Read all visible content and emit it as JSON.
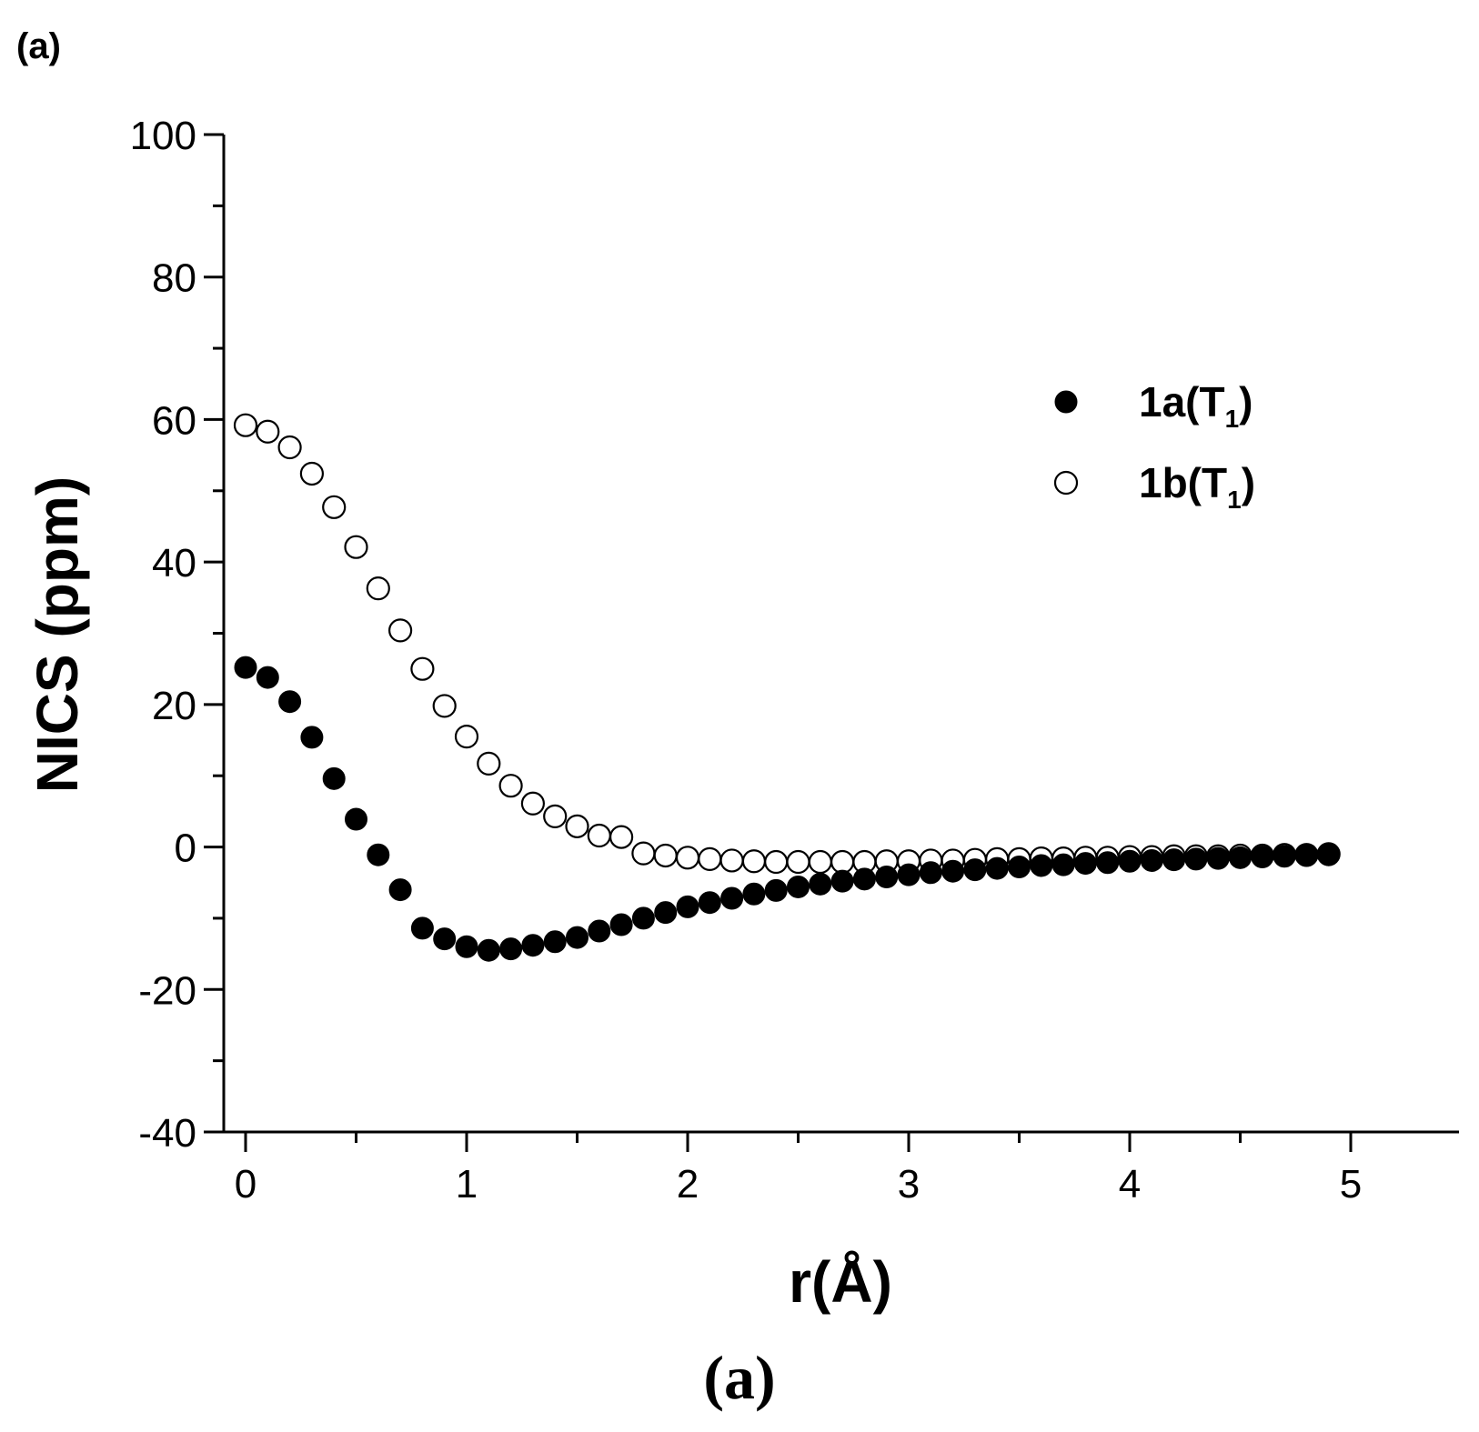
{
  "chart_data": {
    "type": "scatter",
    "panel_label": "(a)",
    "caption": "(a)",
    "xlabel": "r(Å)",
    "ylabel": "NICS (ppm)",
    "xlim": [
      -0.1,
      5.5
    ],
    "ylim": [
      -40,
      100
    ],
    "xticks": [
      0,
      1,
      2,
      3,
      4,
      5
    ],
    "xtick_labels": [
      "0",
      "1",
      "2",
      "3",
      "4",
      "5"
    ],
    "yticks": [
      -40,
      -20,
      0,
      20,
      40,
      60,
      80,
      100
    ],
    "ytick_labels": [
      "-40",
      "-20",
      "0",
      "20",
      "40",
      "60",
      "80",
      "100"
    ],
    "legend_position": "upper-right",
    "series": [
      {
        "name": "1a(T1)",
        "label_main": "1a(T",
        "label_sub": "1",
        "label_end": ")",
        "marker": "filled-circle",
        "x": [
          0.0,
          0.1,
          0.2,
          0.3,
          0.4,
          0.5,
          0.6,
          0.7,
          0.8,
          0.9,
          1.0,
          1.1,
          1.2,
          1.3,
          1.4,
          1.5,
          1.6,
          1.7,
          1.8,
          1.9,
          2.0,
          2.1,
          2.2,
          2.3,
          2.4,
          2.5,
          2.6,
          2.7,
          2.8,
          2.9,
          3.0,
          3.1,
          3.2,
          3.3,
          3.4,
          3.5,
          3.6,
          3.7,
          3.8,
          3.9,
          4.0,
          4.1,
          4.2,
          4.3,
          4.4,
          4.5,
          4.6,
          4.7,
          4.8,
          4.9
        ],
        "y": [
          25.2,
          23.8,
          20.4,
          15.4,
          9.6,
          3.9,
          -1.1,
          -6.0,
          -11.4,
          -12.9,
          -14.0,
          -14.5,
          -14.3,
          -13.8,
          -13.3,
          -12.7,
          -11.8,
          -10.9,
          -10.0,
          -9.2,
          -8.4,
          -7.8,
          -7.2,
          -6.6,
          -6.1,
          -5.6,
          -5.2,
          -4.8,
          -4.5,
          -4.2,
          -3.9,
          -3.6,
          -3.4,
          -3.2,
          -3.0,
          -2.8,
          -2.6,
          -2.5,
          -2.3,
          -2.2,
          -2.0,
          -1.9,
          -1.8,
          -1.7,
          -1.6,
          -1.5,
          -1.4,
          -1.3,
          -1.2,
          -1.1
        ]
      },
      {
        "name": "1b(T1)",
        "label_main": "1b(T",
        "label_sub": "1",
        "label_end": ")",
        "marker": "open-circle",
        "x": [
          0.0,
          0.1,
          0.2,
          0.3,
          0.4,
          0.5,
          0.6,
          0.7,
          0.8,
          0.9,
          1.0,
          1.1,
          1.2,
          1.3,
          1.4,
          1.5,
          1.6,
          1.7,
          1.8,
          1.9,
          2.0,
          2.1,
          2.2,
          2.3,
          2.4,
          2.5,
          2.6,
          2.7,
          2.8,
          2.9,
          3.0,
          3.1,
          3.2,
          3.3,
          3.4,
          3.5,
          3.6,
          3.7,
          3.8,
          3.9,
          4.0,
          4.1,
          4.2,
          4.3,
          4.4,
          4.5,
          4.6,
          4.7,
          4.8,
          4.9
        ],
        "y": [
          59.2,
          58.3,
          56.1,
          52.4,
          47.7,
          42.1,
          36.3,
          30.4,
          25.0,
          19.8,
          15.5,
          11.7,
          8.6,
          6.1,
          4.3,
          2.9,
          1.6,
          1.4,
          -0.9,
          -1.2,
          -1.5,
          -1.7,
          -1.9,
          -2.0,
          -2.1,
          -2.1,
          -2.1,
          -2.1,
          -2.1,
          -2.0,
          -2.0,
          -1.9,
          -1.9,
          -1.8,
          -1.7,
          -1.7,
          -1.6,
          -1.6,
          -1.5,
          -1.5,
          -1.4,
          -1.4,
          -1.3,
          -1.3,
          -1.3,
          -1.2,
          -1.2,
          -1.1,
          -1.1,
          -1.0
        ]
      }
    ]
  },
  "colors": {
    "ink": "#000000",
    "background": "#ffffff"
  }
}
